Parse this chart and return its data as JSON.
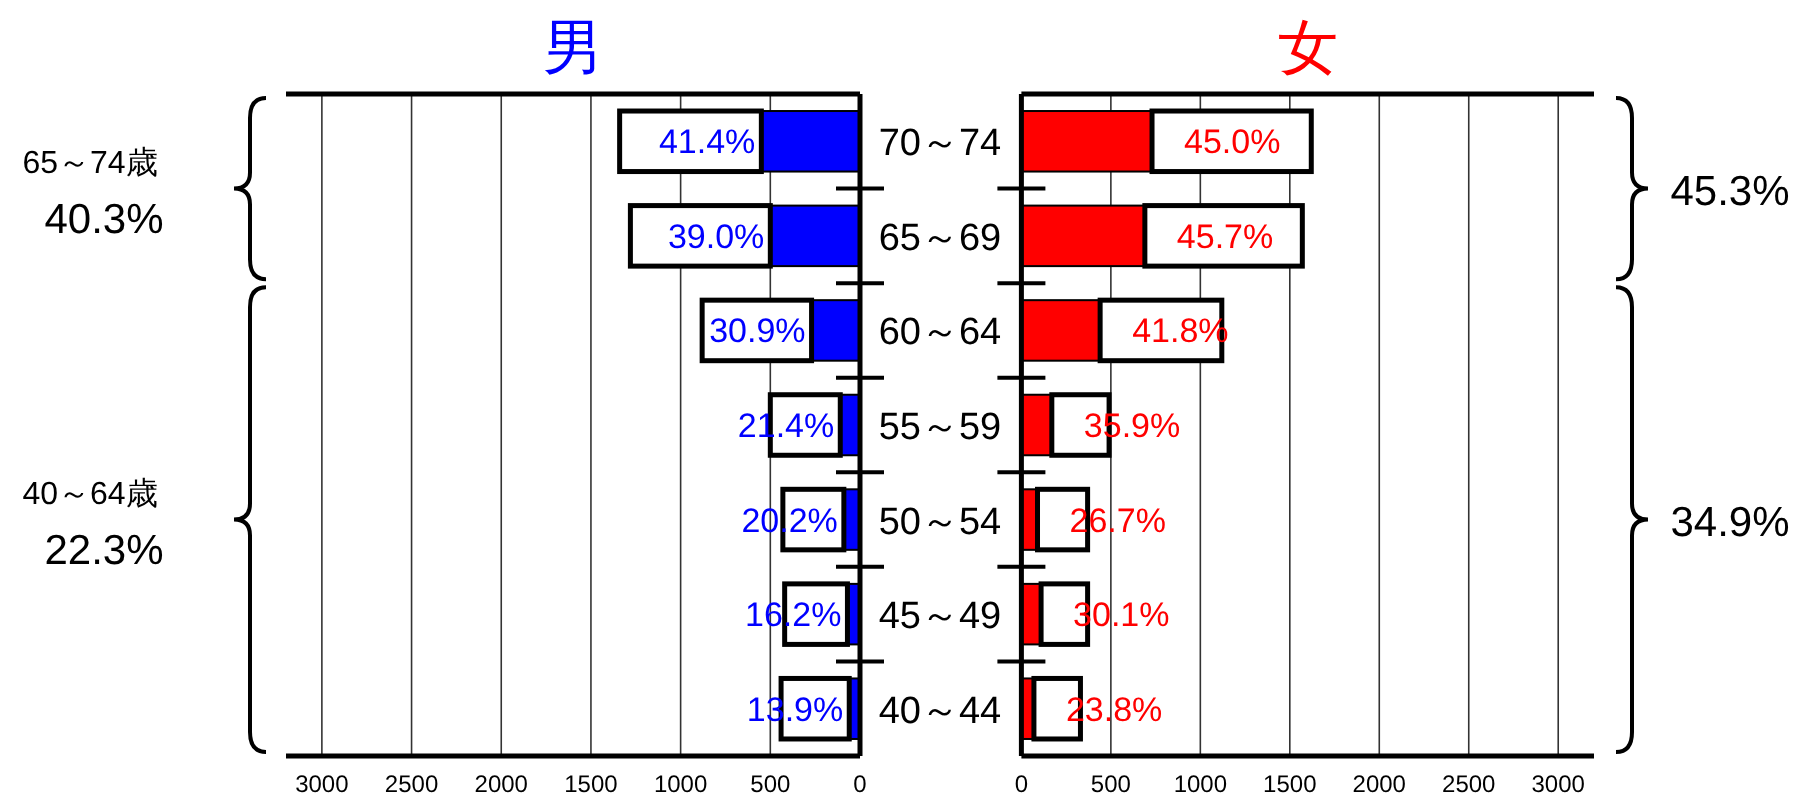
{
  "chart_data": [
    {
      "type": "bar",
      "orientation": "horizontal",
      "stacked": true,
      "title": "男",
      "categories": [
        "70～74",
        "65～69",
        "60～64",
        "55～59",
        "50～54",
        "45～49",
        "40～44"
      ],
      "series": [
        {
          "color": "#0000ff",
          "values": [
            550,
            500,
            270,
            110,
            90,
            70,
            60
          ]
        },
        {
          "color": "#ffffff",
          "values": [
            790,
            780,
            610,
            390,
            340,
            350,
            380
          ]
        }
      ],
      "xlim": [
        3200,
        0
      ],
      "xticks": [
        3000,
        2500,
        2000,
        1500,
        1000,
        500,
        0
      ],
      "grid": "x",
      "annotations": [
        "65～74歳",
        "40.3%",
        "40～64歳",
        "22.3%",
        {
          "text": "41.4%",
          "x": 550,
          "y": "70～74"
        },
        {
          "text": "39.0%",
          "x": 500,
          "y": "65～69"
        },
        {
          "text": "30.9%",
          "x": 270,
          "y": "60～64"
        },
        {
          "text": "21.4%",
          "x": 110,
          "y": "55～59"
        },
        {
          "text": "20.2%",
          "x": 90,
          "y": "50～54"
        },
        {
          "text": "16.2%",
          "x": 70,
          "y": "45～49"
        },
        {
          "text": "13.9%",
          "x": 60,
          "y": "40～44"
        }
      ]
    },
    {
      "type": "bar",
      "orientation": "horizontal",
      "stacked": true,
      "title": "女",
      "categories": [
        "70～74",
        "65～69",
        "60～64",
        "55～59",
        "50～54",
        "45～49",
        "40～44"
      ],
      "series": [
        {
          "color": "#ff0000",
          "values": [
            730,
            690,
            440,
            170,
            90,
            110,
            70
          ]
        },
        {
          "color": "#ffffff",
          "values": [
            890,
            880,
            680,
            320,
            280,
            260,
            260
          ]
        }
      ],
      "xlim": [
        0,
        3200
      ],
      "xticks": [
        0,
        500,
        1000,
        1500,
        2000,
        2500,
        3000
      ],
      "grid": "x",
      "tick_labels": "x",
      "annotations": [
        "45.3%",
        "34.9%",
        {
          "text": "45.0%",
          "x": 730,
          "y": "70～74"
        },
        {
          "text": "45.7%",
          "x": 690,
          "y": "65～69"
        },
        {
          "text": "41.8%",
          "x": 440,
          "y": "60～64"
        },
        {
          "text": "35.9%",
          "x": 170,
          "y": "55～59"
        },
        {
          "text": "26.7%",
          "x": 90,
          "y": "50～54"
        },
        {
          "text": "30.1%",
          "x": 110,
          "y": "45～49"
        },
        {
          "text": "23.8%",
          "x": 70,
          "y": "40～44"
        }
      ]
    }
  ]
}
